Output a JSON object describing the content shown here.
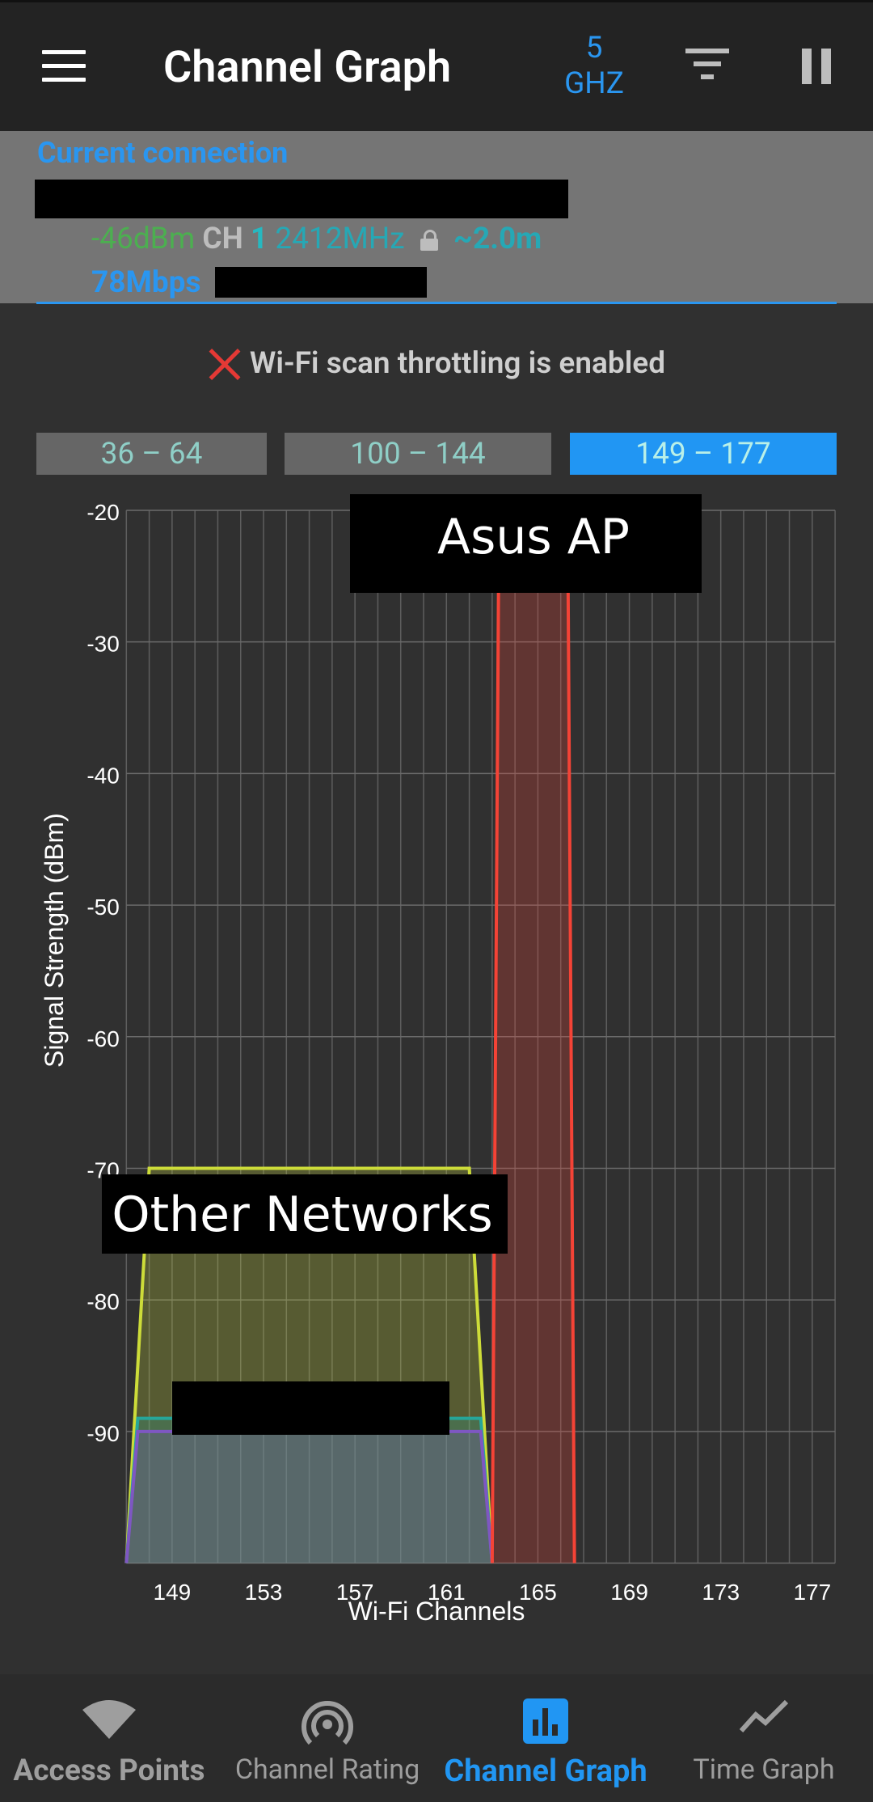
{
  "app_bar": {
    "title": "Channel Graph",
    "band_value": "5",
    "band_unit": "GHZ",
    "menu_icon": "hamburger-menu-icon",
    "filter_icon": "filter-icon",
    "pause_icon": "pause-icon"
  },
  "connection": {
    "title": "Current connection",
    "signal": "-46dBm",
    "ch_label": "CH",
    "channel": "1",
    "frequency": "2412MHz",
    "distance": "~2.0m",
    "speed": "78Mbps",
    "lock_icon": "lock-icon"
  },
  "throttle": {
    "text": "Wi-Fi scan throttling is enabled",
    "icon": "close-x-icon",
    "icon_color": "#e53935"
  },
  "range_tabs": [
    {
      "label": "36 – 64",
      "selected": false
    },
    {
      "label": "100 – 144",
      "selected": false
    },
    {
      "label": "149 – 177",
      "selected": true
    }
  ],
  "chart_data": {
    "type": "area",
    "ylabel": "Signal Strength (dBm)",
    "xlabel": "Wi-Fi Channels",
    "ylim": [
      -100,
      -20
    ],
    "xlim": [
      147,
      178
    ],
    "y_ticks": [
      "-20",
      "-30",
      "-40",
      "-50",
      "-60",
      "-70",
      "-80",
      "-90"
    ],
    "x_ticks": [
      "149",
      "153",
      "157",
      "161",
      "165",
      "169",
      "173",
      "177"
    ],
    "grid": true,
    "annotations": [
      "Asus AP",
      "Other Networks"
    ],
    "series": [
      {
        "channels": [
          147,
          148,
          162,
          163
        ],
        "dbm": [
          -100,
          -70,
          -70,
          -100
        ],
        "color": "#cddc39"
      },
      {
        "channels": [
          147,
          147.5,
          162.5,
          163
        ],
        "dbm": [
          -100,
          -89,
          -89,
          -100
        ],
        "color": "#26a69a"
      },
      {
        "channels": [
          147,
          147.5,
          162.5,
          163
        ],
        "dbm": [
          -100,
          -90,
          -90,
          -100
        ],
        "color": "#7e57c2"
      },
      {
        "channels": [
          163,
          163.3,
          166.3,
          166.6
        ],
        "dbm": [
          -100,
          -20,
          -20,
          -100
        ],
        "color": "#f44336"
      }
    ]
  },
  "bottom_nav": [
    {
      "label": "Access Points",
      "icon": "wifi-icon",
      "selected": false
    },
    {
      "label": "Channel Rating",
      "icon": "radar-icon",
      "selected": false
    },
    {
      "label": "Channel Graph",
      "icon": "bar-chart-icon",
      "selected": true
    },
    {
      "label": "Time Graph",
      "icon": "line-chart-icon",
      "selected": false
    }
  ]
}
